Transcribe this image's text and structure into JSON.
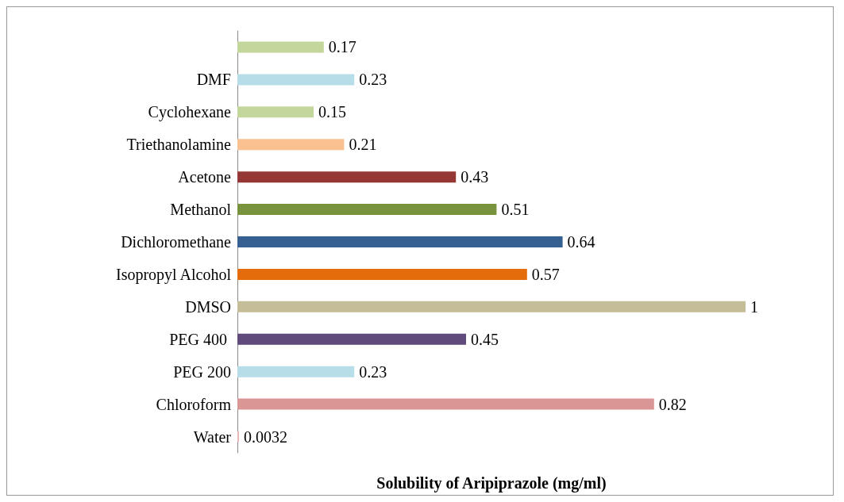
{
  "chart_data": {
    "type": "bar",
    "orientation": "horizontal",
    "xlabel": "Solubility of Aripiprazole (mg/ml)",
    "categories": [
      null,
      "DMF",
      "Cyclohexane",
      "Triethanolamine",
      "Acetone",
      "Methanol",
      "Dichloromethane",
      "Isopropyl Alcohol",
      "DMSO",
      "PEG 400 ",
      "PEG 200",
      "Chloroform",
      "Water"
    ],
    "values": [
      0.17,
      0.23,
      0.15,
      0.21,
      0.43,
      0.51,
      0.64,
      0.57,
      1,
      0.45,
      0.23,
      0.82,
      0.0032
    ],
    "colors": [
      "#c3d69b",
      "#b7dee8",
      "#c3d69b",
      "#fac090",
      "#953735",
      "#77933c",
      "#376092",
      "#e46c0a",
      "#c4bd97",
      "#604a7b",
      "#b7dee8",
      "#d99694",
      "#e6b9b8"
    ],
    "data_labels": true,
    "grid": false
  }
}
